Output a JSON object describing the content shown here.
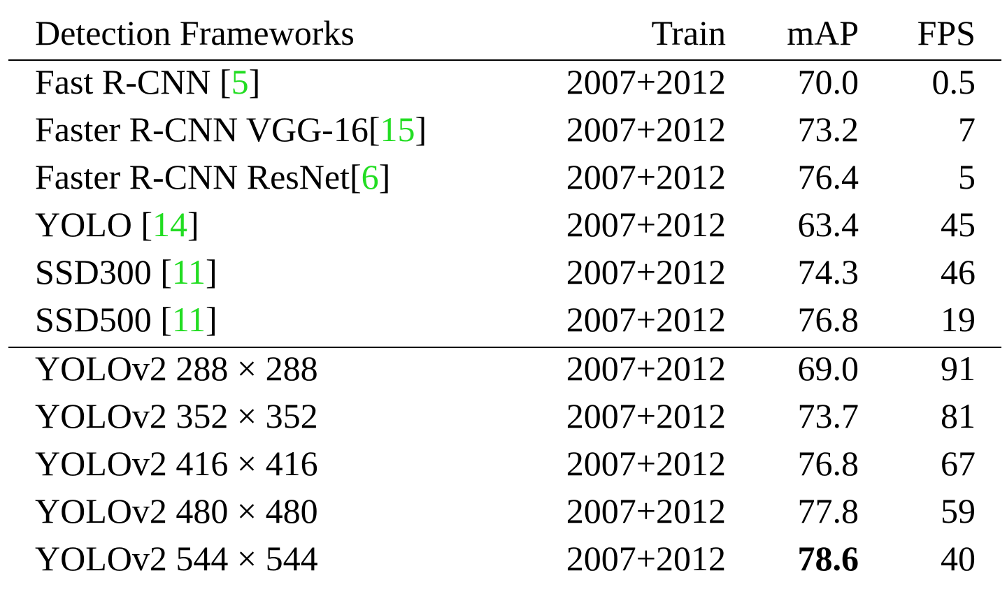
{
  "table": {
    "header": [
      "Detection Frameworks",
      "Train",
      "mAP",
      "FPS"
    ],
    "groups": [
      [
        {
          "framework": {
            "text": "Fast R-CNN [",
            "cite": "5",
            "close": "]"
          },
          "train": "2007+2012",
          "map": "70.0",
          "fps": "0.5"
        },
        {
          "framework": {
            "text": "Faster R-CNN VGG-16[",
            "cite": "15",
            "close": "]"
          },
          "train": "2007+2012",
          "map": "73.2",
          "fps": "7"
        },
        {
          "framework": {
            "text": "Faster R-CNN ResNet[",
            "cite": "6",
            "close": "]"
          },
          "train": "2007+2012",
          "map": "76.4",
          "fps": "5"
        },
        {
          "framework": {
            "text": "YOLO [",
            "cite": "14",
            "close": "]"
          },
          "train": "2007+2012",
          "map": "63.4",
          "fps": "45"
        },
        {
          "framework": {
            "text": "SSD300 [",
            "cite": "11",
            "close": "]"
          },
          "train": "2007+2012",
          "map": "74.3",
          "fps": "46"
        },
        {
          "framework": {
            "text": "SSD500 [",
            "cite": "11",
            "close": "]"
          },
          "train": "2007+2012",
          "map": "76.8",
          "fps": "19"
        }
      ],
      [
        {
          "framework": {
            "text": "YOLOv2 288 × 288"
          },
          "train": "2007+2012",
          "map": "69.0",
          "fps": "91"
        },
        {
          "framework": {
            "text": "YOLOv2 352 × 352"
          },
          "train": "2007+2012",
          "map": "73.7",
          "fps": "81"
        },
        {
          "framework": {
            "text": "YOLOv2 416 × 416"
          },
          "train": "2007+2012",
          "map": "76.8",
          "fps": "67"
        },
        {
          "framework": {
            "text": "YOLOv2 480 × 480"
          },
          "train": "2007+2012",
          "map": "77.8",
          "fps": "59"
        },
        {
          "framework": {
            "text": "YOLOv2 544 × 544"
          },
          "train": "2007+2012",
          "map": "78.6",
          "fps": "40",
          "map_bold": true
        }
      ]
    ]
  }
}
